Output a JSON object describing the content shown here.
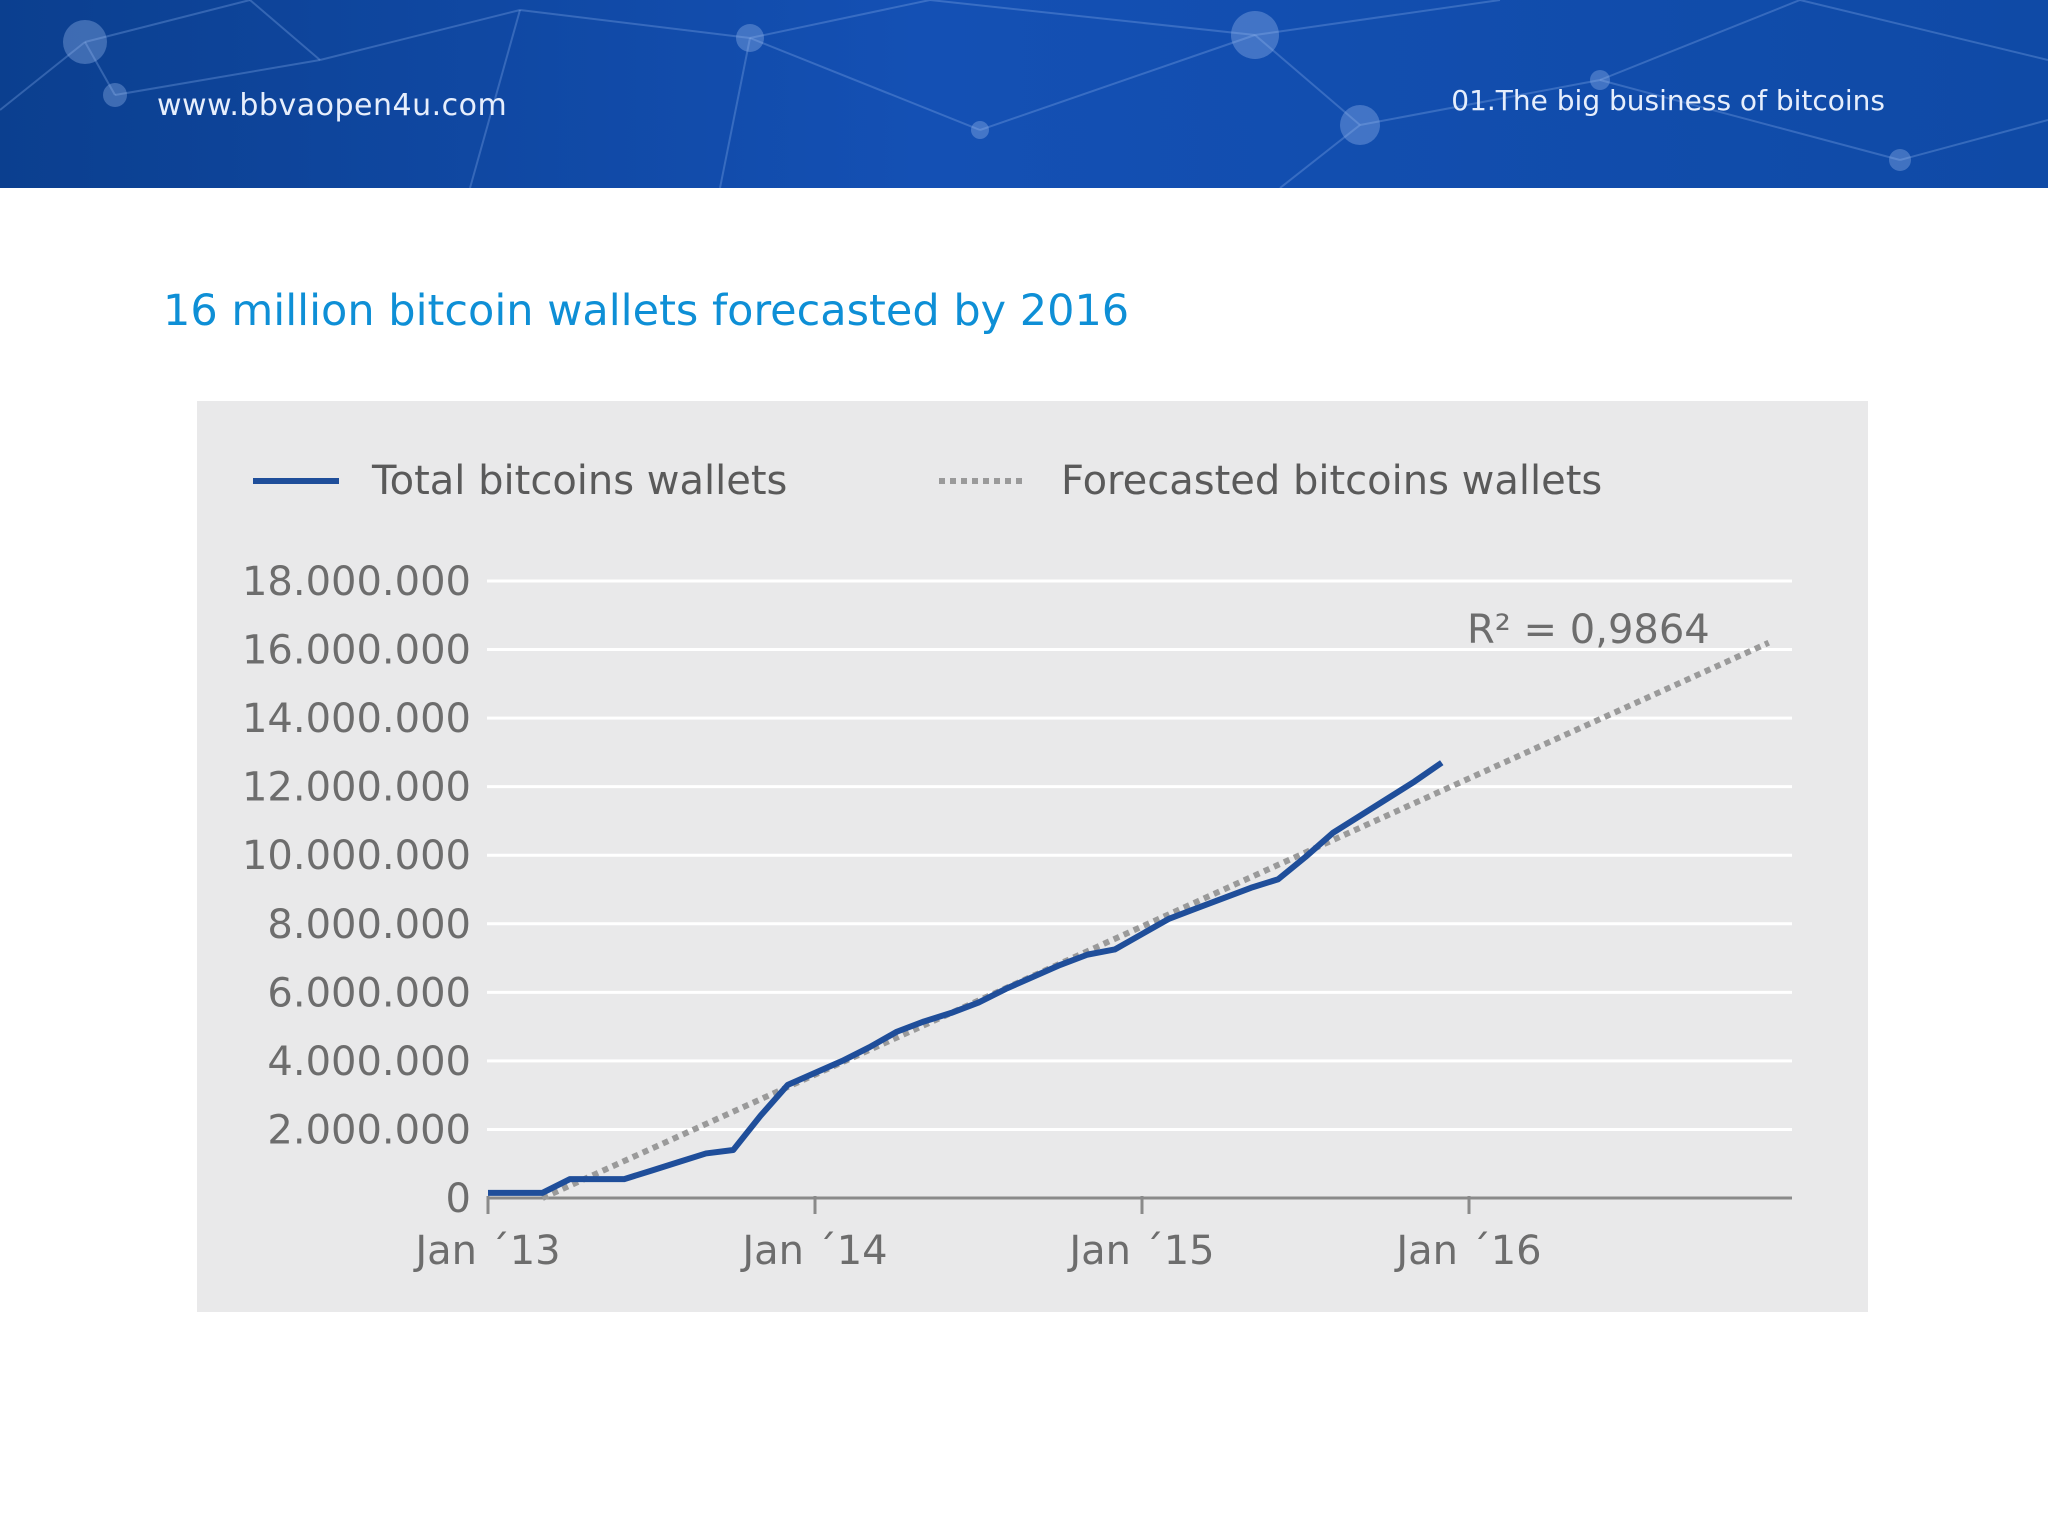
{
  "header": {
    "site_url": "www.bbvaopen4u.com",
    "section_label": "01.The big business of bitcoins"
  },
  "page_title": "16 million bitcoin wallets forecasted by 2016",
  "colors": {
    "header_bg": "#1450b4",
    "title": "#0e8fd6",
    "actual_series": "#1f4e9a",
    "forecast_series": "#9a9a9a",
    "panel_bg": "#e9e9ea"
  },
  "chart_data": {
    "type": "line",
    "title": "",
    "xlabel": "",
    "ylabel": "",
    "ylim": [
      0,
      18000000
    ],
    "y_ticks": [
      0,
      2000000,
      4000000,
      6000000,
      8000000,
      10000000,
      12000000,
      14000000,
      16000000,
      18000000
    ],
    "y_tick_labels": [
      "0",
      "2.000.000",
      "4.000.000",
      "6.000.000",
      "8.000.000",
      "10.000.000",
      "12.000.000",
      "14.000.000",
      "16.000.000",
      "18.000.000"
    ],
    "x_tick_labels": [
      "Jan ´13",
      "Jan ´14",
      "Jan ´15",
      "Jan ´16"
    ],
    "x_ticks": [
      "2013-01",
      "2014-01",
      "2015-01",
      "2016-01"
    ],
    "xlim": [
      "2013-01",
      "2016-12"
    ],
    "grid": true,
    "legend_position": "top",
    "series": [
      {
        "name": "Total bitcoins wallets",
        "style": "solid",
        "x": [
          "2013-01",
          "2013-02",
          "2013-03",
          "2013-04",
          "2013-05",
          "2013-06",
          "2013-07",
          "2013-08",
          "2013-09",
          "2013-10",
          "2013-11",
          "2013-12",
          "2014-01",
          "2014-02",
          "2014-03",
          "2014-04",
          "2014-05",
          "2014-06",
          "2014-07",
          "2014-08",
          "2014-09",
          "2014-10",
          "2014-11",
          "2014-12",
          "2015-01",
          "2015-02",
          "2015-03",
          "2015-04",
          "2015-05",
          "2015-06",
          "2015-07",
          "2015-08",
          "2015-09",
          "2015-10",
          "2015-11",
          "2015-12"
        ],
        "values": [
          150000,
          150000,
          150000,
          550000,
          550000,
          550000,
          800000,
          1050000,
          1300000,
          1400000,
          2400000,
          3300000,
          3650000,
          4000000,
          4400000,
          4850000,
          5150000,
          5400000,
          5700000,
          6100000,
          6450000,
          6800000,
          7100000,
          7250000,
          7700000,
          8150000,
          8450000,
          8750000,
          9050000,
          9300000,
          9950000,
          10650000,
          11150000,
          11650000,
          12150000,
          12700000
        ]
      },
      {
        "name": "Forecasted bitcoins wallets",
        "style": "dotted",
        "x": [
          "2013-03",
          "2016-12"
        ],
        "values": [
          0,
          16200000
        ]
      }
    ],
    "annotations": [
      {
        "text": "R² = 0,9864",
        "x": "2016-08",
        "y": 16600000
      }
    ]
  }
}
